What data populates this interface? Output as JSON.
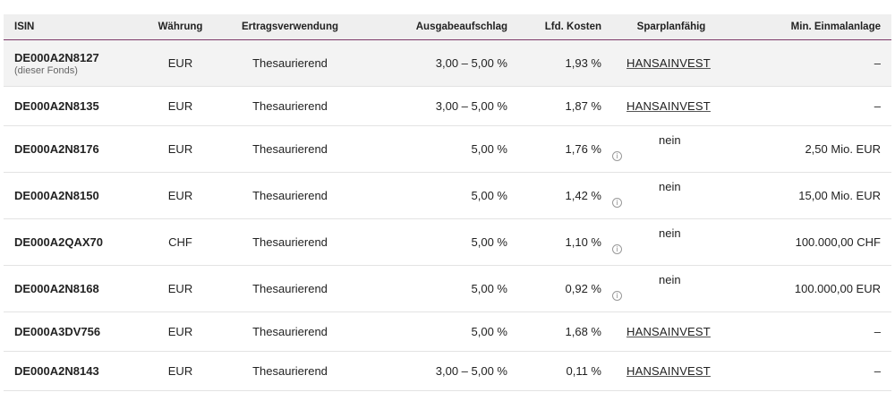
{
  "table": {
    "headers": {
      "isin": "ISIN",
      "currency": "Währung",
      "usage": "Ertragsverwendung",
      "fee": "Ausgabeaufschlag",
      "costs": "Lfd. Kosten",
      "savings": "Sparplanfähig",
      "min": "Min. Einmalanlage"
    },
    "rows": [
      {
        "isin": "DE000A2N8127",
        "note": "(dieser Fonds)",
        "currency": "EUR",
        "usage": "Thesaurierend",
        "fee": "3,00 – 5,00 %",
        "costs": "1,93 %",
        "savings": "HANSAINVEST",
        "info_icon": "",
        "min": "–"
      },
      {
        "isin": "DE000A2N8135",
        "note": "",
        "currency": "EUR",
        "usage": "Thesaurierend",
        "fee": "3,00 – 5,00 %",
        "costs": "1,87 %",
        "savings": "HANSAINVEST",
        "info_icon": "",
        "min": "–"
      },
      {
        "isin": "DE000A2N8176",
        "note": "",
        "currency": "EUR",
        "usage": "Thesaurierend",
        "fee": "5,00 %",
        "costs": "1,76 %",
        "savings": "nein",
        "info_icon": "info-icon",
        "min": "2,50 Mio. EUR"
      },
      {
        "isin": "DE000A2N8150",
        "note": "",
        "currency": "EUR",
        "usage": "Thesaurierend",
        "fee": "5,00 %",
        "costs": "1,42 %",
        "savings": "nein",
        "info_icon": "info-icon",
        "min": "15,00 Mio. EUR"
      },
      {
        "isin": "DE000A2QAX70",
        "note": "",
        "currency": "CHF",
        "usage": "Thesaurierend",
        "fee": "5,00 %",
        "costs": "1,10 %",
        "savings": "nein",
        "info_icon": "info-icon",
        "min": "100.000,00 CHF"
      },
      {
        "isin": "DE000A2N8168",
        "note": "",
        "currency": "EUR",
        "usage": "Thesaurierend",
        "fee": "5,00 %",
        "costs": "0,92 %",
        "savings": "nein",
        "info_icon": "info-icon",
        "min": "100.000,00 EUR"
      },
      {
        "isin": "DE000A3DV756",
        "note": "",
        "currency": "EUR",
        "usage": "Thesaurierend",
        "fee": "5,00 %",
        "costs": "1,68 %",
        "savings": "HANSAINVEST",
        "info_icon": "",
        "min": "–"
      },
      {
        "isin": "DE000A2N8143",
        "note": "",
        "currency": "EUR",
        "usage": "Thesaurierend",
        "fee": "3,00 – 5,00 %",
        "costs": "0,11 %",
        "savings": "HANSAINVEST",
        "info_icon": "",
        "min": "–"
      }
    ]
  },
  "colors": {
    "header_bg": "#efefef",
    "header_border": "#7d3768",
    "highlight_row": "#f3f3f3",
    "row_border": "#e3e3e3"
  }
}
